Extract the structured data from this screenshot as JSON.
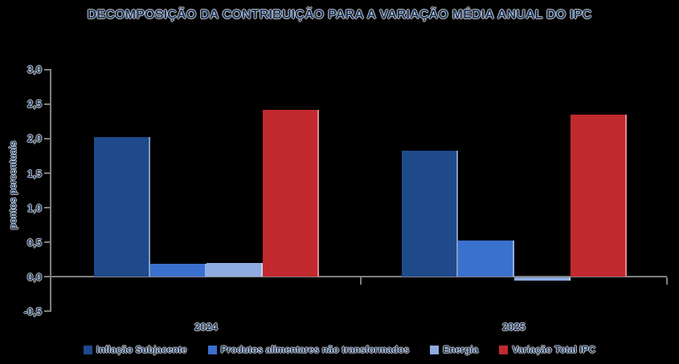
{
  "title": "DECOMPOSIÇÃO DA CONTRIBUIÇÃO PARA A VARIAÇÃO MÉDIA ANUAL DO IPC",
  "y_axis_label": "pontos percentuais",
  "colors": {
    "background": "#000000",
    "axis": "#7f7f7f",
    "text": "#16335c",
    "dark_blue": "#1E4A8C",
    "medium_blue": "#3A70CE",
    "light_blue": "#8FACE0",
    "red": "#C2292F"
  },
  "chart_data": {
    "type": "bar",
    "title": "DECOMPOSIÇÃO DA CONTRIBUIÇÃO PARA A VARIAÇÃO MÉDIA ANUAL DO IPC",
    "xlabel": "",
    "ylabel": "pontos percentuais",
    "categories": [
      "2024",
      "2025"
    ],
    "series": [
      {
        "name": "Inflação Subjacente",
        "color": "#1E4A8C",
        "values": [
          2.02,
          1.83
        ]
      },
      {
        "name": "Produtos alimentares não transformados",
        "color": "#3A70CE",
        "values": [
          0.19,
          0.52
        ]
      },
      {
        "name": "Energia",
        "color": "#8FACE0",
        "values": [
          0.2,
          -0.04
        ]
      },
      {
        "name": "Variação Total IPC",
        "color": "#C2292F",
        "values": [
          2.42,
          2.35
        ]
      }
    ],
    "ylim": [
      -0.5,
      3.0
    ],
    "ytick_step": 0.5,
    "yticks": [
      "3,0",
      "2,5",
      "2,0",
      "1,5",
      "1,0",
      "0,5",
      "0,0",
      "-0,5"
    ],
    "grid": false,
    "legend_position": "bottom"
  }
}
